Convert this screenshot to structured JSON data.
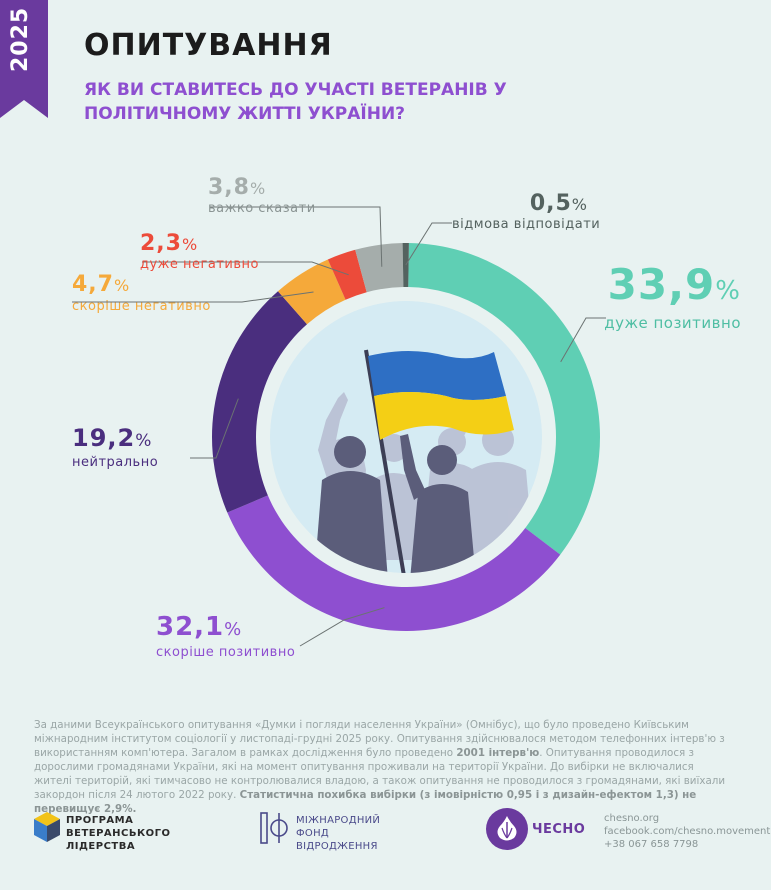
{
  "year": "2025",
  "title": "ОПИТУВАННЯ",
  "subtitle": "ЯК ВИ СТАВИТЕСЬ ДО УЧАСТІ ВЕТЕРАНІВ У ПОЛІТИЧНОМУ ЖИТТІ УКРАЇНИ?",
  "colors": {
    "brand": "#6a3a9e",
    "very_positive": "#5fcfb4",
    "rather_positive": "#8e4fd0",
    "neutral": "#4a2e7e",
    "rather_negative": "#f5a93a",
    "very_negative": "#ec4b3a",
    "hard_to_say": "#a5adab",
    "refused": "#54625f"
  },
  "chart_data": {
    "type": "pie",
    "title": "ЯК ВИ СТАВИТЕСЬ ДО УЧАСТІ ВЕТЕРАНІВ У ПОЛІТИЧНОМУ ЖИТТІ УКРАЇНИ?",
    "unit": "%",
    "slices": [
      {
        "key": "very_positive",
        "label": "дуже позитивно",
        "value": 33.9,
        "value_text": "33,9",
        "color": "#5fcfb4"
      },
      {
        "key": "rather_positive",
        "label": "скоріше позитивно",
        "value": 32.1,
        "value_text": "32,1",
        "color": "#8e4fd0"
      },
      {
        "key": "neutral",
        "label": "нейтрально",
        "value": 19.2,
        "value_text": "19,2",
        "color": "#4a2e7e"
      },
      {
        "key": "rather_negative",
        "label": "скоріше негативно",
        "value": 4.7,
        "value_text": "4,7",
        "color": "#f5a93a"
      },
      {
        "key": "very_negative",
        "label": "дуже негативно",
        "value": 2.3,
        "value_text": "2,3",
        "color": "#ec4b3a"
      },
      {
        "key": "hard_to_say",
        "label": "важко сказати",
        "value": 3.8,
        "value_text": "3,8",
        "color": "#a5adab"
      },
      {
        "key": "refused",
        "label": "відмова відповідати",
        "value": 0.5,
        "value_text": "0,5",
        "color": "#54625f"
      }
    ]
  },
  "footnote": {
    "part1": "За даними Всеукраїнського опитування «Думки і погляди населення України» (Омнібус), що було проведено Київським міжнародним інститутом соціології у листопаді-грудні 2025 року. Опитування здійснювалося методом телефонних інтерв'ю з використанням комп'ютера. Загалом в рамках дослідження було проведено ",
    "bold1": "2001 інтерв'ю",
    "part2": ". Опитування проводилося з дорослими громадянами України, які на момент опитування проживали на території України. До вибірки не включалися жителі територій, які тимчасово не контролювалися владою, а також опитування не проводилося з громадянами, які виїхали закордон після 24 лютого 2022 року. ",
    "bold2": "Статистична похибка вибірки (з імовірністю 0,95 і з дизайн-ефектом 1,3) не перевищує 2,9%."
  },
  "logos": {
    "program": [
      "ПРОГРАМА",
      "ВЕТЕРАНСЬКОГО",
      "ЛІДЕРСТВА"
    ],
    "irf": [
      "МІЖНАРОДНИЙ",
      "ФОНД",
      "ВІДРОДЖЕННЯ"
    ],
    "chesno": "ЧЕСНО"
  },
  "contacts": {
    "site": "chesno.org",
    "facebook": "facebook.com/chesno.movement",
    "phone": "+38 067 658 7798"
  }
}
